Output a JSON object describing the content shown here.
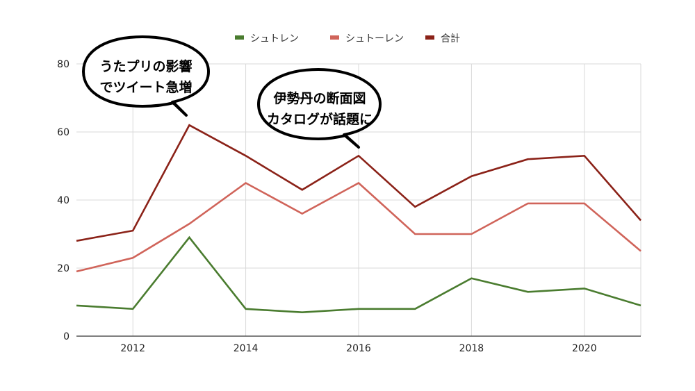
{
  "chart_data": {
    "type": "line",
    "x": [
      2011,
      2012,
      2013,
      2014,
      2015,
      2016,
      2017,
      2018,
      2019,
      2020,
      2021
    ],
    "series": [
      {
        "name": "シュトレン",
        "color": "#4a7c2f",
        "values": [
          9,
          8,
          29,
          8,
          7,
          8,
          8,
          17,
          13,
          14,
          9
        ]
      },
      {
        "name": "シュトーレン",
        "color": "#d0645a",
        "values": [
          19,
          23,
          33,
          45,
          36,
          45,
          30,
          30,
          39,
          39,
          25
        ]
      },
      {
        "name": "合計",
        "color": "#8b2218",
        "values": [
          28,
          31,
          62,
          53,
          43,
          53,
          38,
          47,
          52,
          53,
          34
        ]
      }
    ],
    "xticks": [
      "2012",
      "2014",
      "2016",
      "2018",
      "2020"
    ],
    "yticks": [
      "0",
      "20",
      "40",
      "60",
      "80"
    ],
    "ylim": [
      0,
      80
    ],
    "xlim": [
      2011,
      2021
    ],
    "grid": true,
    "legend_position": "top-center",
    "annotations": [
      {
        "lines": [
          "うたプリの影響",
          "でツイート急増"
        ],
        "x": 2013
      },
      {
        "lines": [
          "伊勢丹の断面図",
          "カタログが話題に"
        ],
        "x": 2016
      }
    ]
  }
}
